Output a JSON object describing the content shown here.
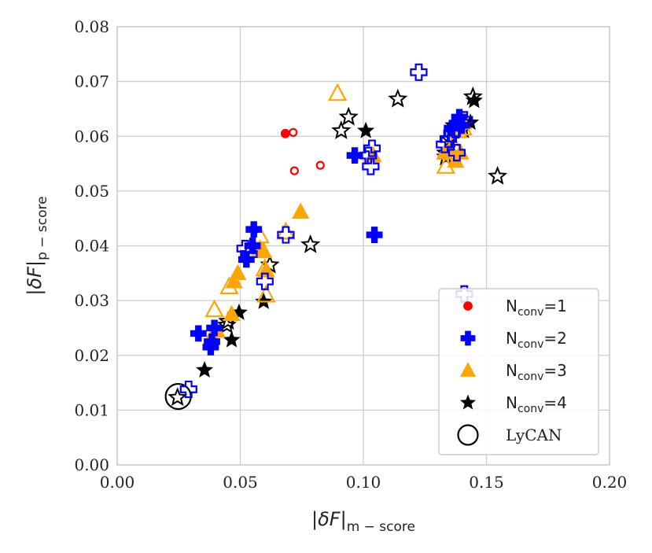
{
  "chart_data": {
    "type": "scatter",
    "title": "",
    "xlabel": {
      "symbol": "|δF|",
      "subscript": "m − score"
    },
    "ylabel": {
      "symbol": "|δF|",
      "subscript": "p − score"
    },
    "xlim": [
      0.0,
      0.2
    ],
    "ylim": [
      0.0,
      0.08
    ],
    "xticks": [
      "0.00",
      "0.05",
      "0.10",
      "0.15",
      "0.20"
    ],
    "yticks": [
      "0.00",
      "0.01",
      "0.02",
      "0.03",
      "0.04",
      "0.05",
      "0.06",
      "0.07",
      "0.08"
    ],
    "grid": true,
    "legend_position": "bottom-right",
    "colors": {
      "nconv1": "#ff0000",
      "nconv2": "#0000ff",
      "nconv3": "#ffa500",
      "nconv4": "#000000",
      "lycan": "#000000",
      "grid": "#cccccc",
      "axes": "#cccccc"
    },
    "series": [
      {
        "name": "Nconv=1",
        "label_main": "N",
        "label_sub": "conv",
        "label_tail": "=1",
        "marker": "circle",
        "color": "#ff0000",
        "filled": [
          [
            0.0683,
            0.0605
          ]
        ],
        "hollow": [
          [
            0.0715,
            0.0607
          ],
          [
            0.072,
            0.0537
          ],
          [
            0.0825,
            0.0547
          ]
        ]
      },
      {
        "name": "Nconv=2",
        "label_main": "N",
        "label_sub": "conv",
        "label_tail": "=2",
        "marker": "plus",
        "color": "#0000ff",
        "filled": [
          [
            0.033,
            0.024
          ],
          [
            0.038,
            0.0215
          ],
          [
            0.0385,
            0.0225
          ],
          [
            0.0395,
            0.025
          ],
          [
            0.0525,
            0.0375
          ],
          [
            0.055,
            0.04
          ],
          [
            0.0555,
            0.043
          ],
          [
            0.0965,
            0.0565
          ],
          [
            0.1045,
            0.042
          ],
          [
            0.136,
            0.0615
          ],
          [
            0.139,
            0.0635
          ],
          [
            0.14,
            0.062
          ]
        ],
        "hollow": [
          [
            0.029,
            0.0138
          ],
          [
            0.052,
            0.0395
          ],
          [
            0.0535,
            0.0385
          ],
          [
            0.06,
            0.0335
          ],
          [
            0.0685,
            0.042
          ],
          [
            0.102,
            0.0565
          ],
          [
            0.103,
            0.0545
          ],
          [
            0.1035,
            0.0578
          ],
          [
            0.1225,
            0.0717
          ],
          [
            0.133,
            0.0585
          ],
          [
            0.1345,
            0.0595
          ],
          [
            0.136,
            0.0605
          ],
          [
            0.1375,
            0.0612
          ],
          [
            0.138,
            0.057
          ],
          [
            0.141,
            0.063
          ],
          [
            0.141,
            0.0312
          ]
        ]
      },
      {
        "name": "Nconv=3",
        "label_main": "N",
        "label_sub": "conv",
        "label_tail": "=3",
        "marker": "triangle",
        "color": "#ffa500",
        "filled": [
          [
            0.0385,
            0.0235
          ],
          [
            0.0405,
            0.0245
          ],
          [
            0.0465,
            0.0275
          ],
          [
            0.0475,
            0.0335
          ],
          [
            0.049,
            0.035
          ],
          [
            0.058,
            0.0395
          ],
          [
            0.0595,
            0.039
          ],
          [
            0.0605,
            0.0355
          ],
          [
            0.0745,
            0.0462
          ],
          [
            0.104,
            0.0565
          ],
          [
            0.133,
            0.057
          ],
          [
            0.1355,
            0.0575
          ],
          [
            0.1375,
            0.0555
          ],
          [
            0.1395,
            0.057
          ],
          [
            0.1405,
            0.0625
          ]
        ],
        "hollow": [
          [
            0.0395,
            0.0283
          ],
          [
            0.0455,
            0.0325
          ],
          [
            0.058,
            0.0418
          ],
          [
            0.06,
            0.0358
          ],
          [
            0.0605,
            0.031
          ],
          [
            0.0685,
            0.0425
          ],
          [
            0.0895,
            0.0678
          ],
          [
            0.1335,
            0.0545
          ],
          [
            0.1365,
            0.0585
          ],
          [
            0.1385,
            0.061
          ],
          [
            0.1405,
            0.0615
          ]
        ]
      },
      {
        "name": "Nconv=4",
        "label_main": "N",
        "label_sub": "conv",
        "label_tail": "=4",
        "marker": "star",
        "color": "#000000",
        "filled": [
          [
            0.0355,
            0.0173
          ],
          [
            0.0465,
            0.0228
          ],
          [
            0.0495,
            0.0278
          ],
          [
            0.0595,
            0.0298
          ],
          [
            0.101,
            0.061
          ],
          [
            0.133,
            0.057
          ],
          [
            0.1365,
            0.062
          ],
          [
            0.1435,
            0.0625
          ],
          [
            0.145,
            0.0665
          ]
        ],
        "hollow": [
          [
            0.0245,
            0.0123
          ],
          [
            0.0445,
            0.0255
          ],
          [
            0.045,
            0.0262
          ],
          [
            0.062,
            0.0365
          ],
          [
            0.0785,
            0.0402
          ],
          [
            0.091,
            0.061
          ],
          [
            0.094,
            0.0635
          ],
          [
            0.114,
            0.0668
          ],
          [
            0.1335,
            0.0562
          ],
          [
            0.135,
            0.0595
          ],
          [
            0.1405,
            0.0612
          ],
          [
            0.1445,
            0.0672
          ],
          [
            0.1545,
            0.0527
          ]
        ]
      },
      {
        "name": "LyCAN",
        "label_main": "LyCAN",
        "marker": "big-circle",
        "color": "#000000",
        "filled": [],
        "hollow": [
          [
            0.0248,
            0.0125
          ]
        ]
      }
    ]
  }
}
